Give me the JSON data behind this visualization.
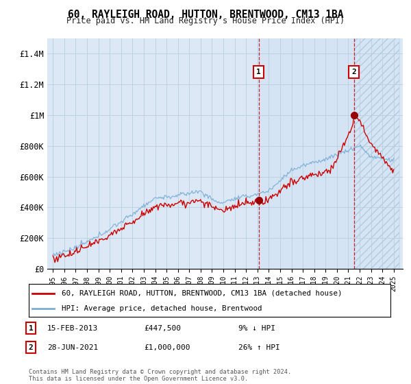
{
  "title": "60, RAYLEIGH ROAD, HUTTON, BRENTWOOD, CM13 1BA",
  "subtitle": "Price paid vs. HM Land Registry's House Price Index (HPI)",
  "ylim": [
    0,
    1500000
  ],
  "yticks": [
    0,
    200000,
    400000,
    600000,
    800000,
    1000000,
    1200000,
    1400000
  ],
  "ytick_labels": [
    "£0",
    "£200K",
    "£400K",
    "£600K",
    "£800K",
    "£1M",
    "£1.2M",
    "£1.4M"
  ],
  "sale1_year": 2013.12,
  "sale1_price": 447500,
  "sale2_year": 2021.49,
  "sale2_price": 1000000,
  "line_color_house": "#cc0000",
  "line_color_hpi": "#7aadd4",
  "background_color": "#ffffff",
  "plot_bg_color": "#dce8f5",
  "grid_color": "#b8cfe0",
  "legend_house": "60, RAYLEIGH ROAD, HUTTON, BRENTWOOD, CM13 1BA (detached house)",
  "legend_hpi": "HPI: Average price, detached house, Brentwood",
  "note1_label": "1",
  "note1_date": "15-FEB-2013",
  "note1_price": "£447,500",
  "note1_hpi": "9% ↓ HPI",
  "note2_label": "2",
  "note2_date": "28-JUN-2021",
  "note2_price": "£1,000,000",
  "note2_hpi": "26% ↑ HPI",
  "footer": "Contains HM Land Registry data © Crown copyright and database right 2024.\nThis data is licensed under the Open Government Licence v3.0."
}
